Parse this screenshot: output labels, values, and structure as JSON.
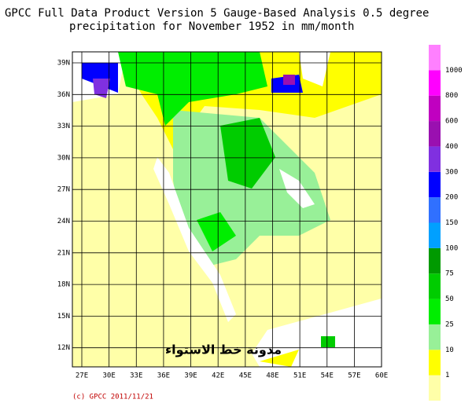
{
  "header": {
    "title_line1": "GPCC Full Data Product Version 5 Gauge-Based Analysis 0.5 degree",
    "title_line2": "precipitation for November  1952 in mm/month"
  },
  "map": {
    "lat_labels": [
      "39N",
      "36N",
      "33N",
      "30N",
      "27N",
      "24N",
      "21N",
      "18N",
      "15N",
      "12N"
    ],
    "lon_labels": [
      "27E",
      "30E",
      "33E",
      "36E",
      "39E",
      "42E",
      "45E",
      "48E",
      "51E",
      "54E",
      "57E",
      "60E"
    ],
    "watermark": "مدونة خط الاستواء",
    "copyright": "(c) GPCC 2011/11/21"
  },
  "colorbar": {
    "labels": [
      1,
      10,
      25,
      50,
      75,
      100,
      150,
      200,
      300,
      400,
      600,
      800,
      1000
    ],
    "colors": [
      "#ffffa8",
      "#ffff00",
      "#98f098",
      "#00ee00",
      "#00cc00",
      "#009a00",
      "#00a0ff",
      "#3070ff",
      "#0000ff",
      "#8030e0",
      "#9a10b0",
      "#c000c0",
      "#ff00ff",
      "#ff80ff"
    ]
  }
}
